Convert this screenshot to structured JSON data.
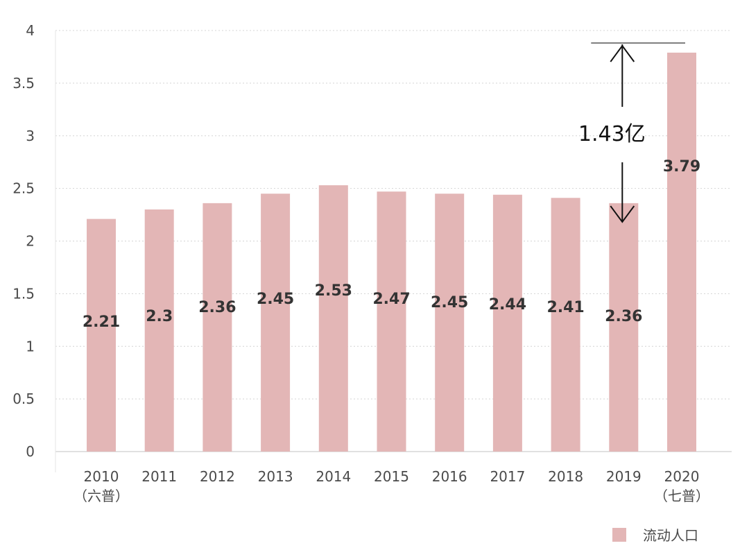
{
  "chart_data": {
    "type": "bar",
    "categories": [
      "2010",
      "2011",
      "2012",
      "2013",
      "2014",
      "2015",
      "2016",
      "2017",
      "2018",
      "2019",
      "2020"
    ],
    "category_sublabels": [
      "（六普）",
      "",
      "",
      "",
      "",
      "",
      "",
      "",
      "",
      "",
      "（七普）"
    ],
    "series": [
      {
        "name": "流动人口",
        "values": [
          2.21,
          2.3,
          2.36,
          2.45,
          2.53,
          2.47,
          2.45,
          2.44,
          2.41,
          2.36,
          3.79
        ],
        "color": "#e3b6b6"
      }
    ],
    "data_labels": [
      "2.21",
      "2.3",
      "2.36",
      "2.45",
      "2.53",
      "2.47",
      "2.45",
      "2.44",
      "2.41",
      "2.36",
      "3.79"
    ],
    "title": "",
    "xlabel": "",
    "ylabel": "",
    "ylim": [
      0,
      4
    ],
    "yticks": [
      "0",
      "0.5",
      "1",
      "1.5",
      "2",
      "2.5",
      "3",
      "3.5",
      "4"
    ],
    "grid": true,
    "grid_style": "dotted",
    "legend_position": "bottom-right",
    "annotation": {
      "text": "1.43亿",
      "from_category": "2019",
      "to_category": "2020",
      "from_value": 2.36,
      "to_value": 3.79
    }
  }
}
